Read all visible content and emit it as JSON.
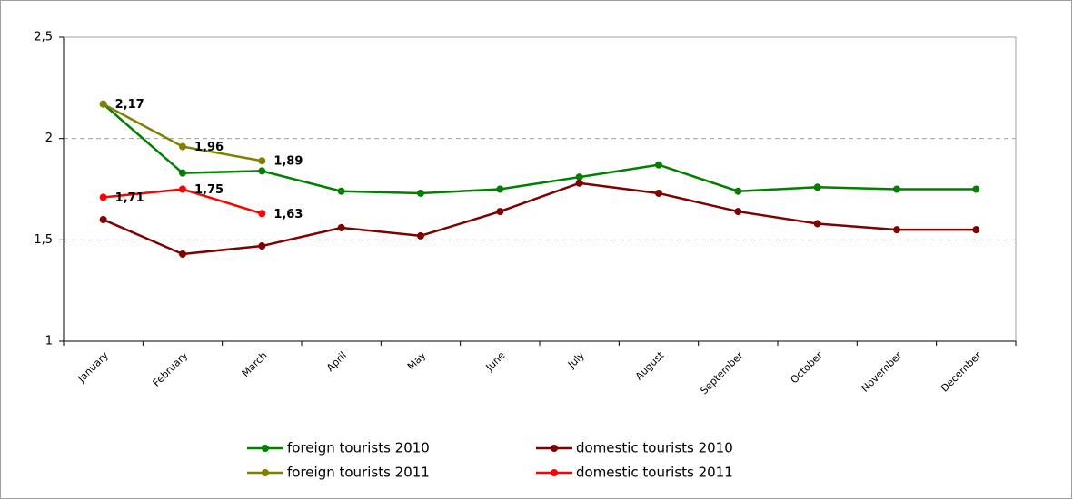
{
  "chart_data": {
    "type": "line",
    "categories": [
      "January",
      "February",
      "March",
      "April",
      "May",
      "June",
      "July",
      "August",
      "September",
      "October",
      "November",
      "December"
    ],
    "series": [
      {
        "name": "foreign tourists 2010",
        "color": "#008000",
        "values": [
          2.17,
          1.83,
          1.84,
          1.74,
          1.73,
          1.75,
          1.81,
          1.87,
          1.74,
          1.76,
          1.75,
          1.75
        ]
      },
      {
        "name": "domestic tourists 2010",
        "color": "#800000",
        "values": [
          1.6,
          1.43,
          1.47,
          1.56,
          1.52,
          1.64,
          1.78,
          1.73,
          1.64,
          1.58,
          1.55,
          1.55
        ]
      },
      {
        "name": "foreign tourists 2011",
        "color": "#808000",
        "values": [
          2.17,
          1.96,
          1.89,
          null,
          null,
          null,
          null,
          null,
          null,
          null,
          null,
          null
        ],
        "value_labels": [
          "2,17",
          "1,96",
          "1,89",
          null,
          null,
          null,
          null,
          null,
          null,
          null,
          null,
          null
        ]
      },
      {
        "name": "domestic tourists 2011",
        "color": "#ff0000",
        "values": [
          1.71,
          1.75,
          1.63,
          null,
          null,
          null,
          null,
          null,
          null,
          null,
          null,
          null
        ],
        "value_labels": [
          "1,71",
          "1,75",
          "1,63",
          null,
          null,
          null,
          null,
          null,
          null,
          null,
          null,
          null
        ]
      }
    ],
    "ylim": [
      1,
      2.5
    ],
    "yticks": [
      1,
      {
        "value": 1.5,
        "label": "1,5"
      },
      2,
      {
        "value": 2.5,
        "label": "2,5"
      }
    ],
    "grid": true
  }
}
